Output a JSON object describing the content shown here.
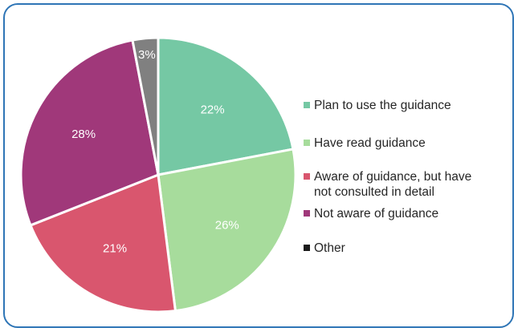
{
  "chart_data": {
    "type": "pie",
    "title": "",
    "slices": [
      {
        "label": "Plan to use the guidance",
        "value": 22,
        "display": "22%",
        "color": "#75C8A4"
      },
      {
        "label": "Have read guidance",
        "value": 26,
        "display": "26%",
        "color": "#A7DC9C"
      },
      {
        "label": "Aware of guidance, but have not consulted in detail",
        "value": 21,
        "display": "21%",
        "color": "#D9566E"
      },
      {
        "label": "Not aware of guidance",
        "value": 28,
        "display": "28%",
        "color": "#A0387A"
      },
      {
        "label": "Other",
        "value": 3,
        "display": "3%",
        "color": "#808080"
      }
    ],
    "legend_position": "right",
    "legend_other_swatch": "#1A1A1A"
  },
  "legend": {
    "items": [
      {
        "text": "Plan to use the guidance",
        "color": "#75C8A4"
      },
      {
        "text": "Have read guidance",
        "color": "#A7DC9C"
      },
      {
        "text": "Aware of guidance, but have\nnot consulted in detail",
        "color": "#D9566E"
      },
      {
        "text": "Not aware of guidance",
        "color": "#A0387A"
      },
      {
        "text": "Other",
        "color": "#1A1A1A"
      }
    ]
  }
}
